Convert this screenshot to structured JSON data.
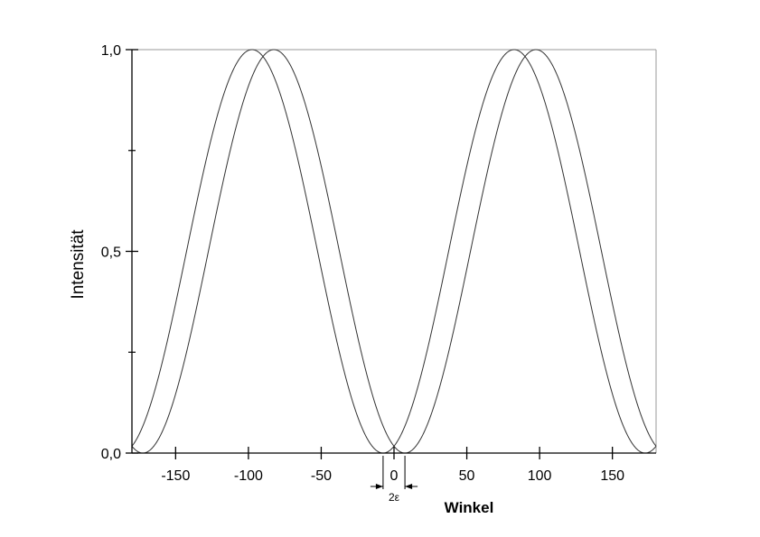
{
  "chart_data": {
    "type": "line",
    "title": "",
    "xlabel": "Winkel",
    "ylabel": "Intensität",
    "xlim": [
      -180,
      180
    ],
    "ylim": [
      0,
      1.0
    ],
    "x_ticks": [
      -150,
      -100,
      -50,
      0,
      50,
      100,
      150
    ],
    "x_tick_labels": [
      "-150",
      "-100",
      "-50",
      "0",
      "50",
      "100",
      "150"
    ],
    "y_ticks": [
      0,
      0.5,
      1.0
    ],
    "y_tick_labels": [
      "0,0",
      "0,5",
      "1,0"
    ],
    "y_minor_ticks": [
      0.25,
      0.75
    ],
    "grid": false,
    "legend": "none",
    "line_color": "#333333",
    "series": [
      {
        "function": "sin^2(x + epsilon)",
        "x": [
          -180,
          -165,
          -150,
          -135,
          -120,
          -105,
          -90,
          -75,
          -60,
          -45,
          -30,
          -15,
          0,
          15,
          30,
          45,
          60,
          75,
          90,
          105,
          120,
          135,
          150,
          165,
          180
        ],
        "values": [
          0.06,
          0.01,
          0.13,
          0.38,
          0.66,
          0.9,
          0.99,
          0.91,
          0.68,
          0.39,
          0.14,
          0.01,
          0.06,
          0.25,
          0.53,
          0.79,
          0.96,
          0.98,
          0.82,
          0.56,
          0.28,
          0.08,
          0.0,
          0.11,
          0.06
        ]
      },
      {
        "function": "sin^2(x - epsilon)",
        "x": [
          -180,
          -165,
          -150,
          -135,
          -120,
          -105,
          -90,
          -75,
          -60,
          -45,
          -30,
          -15,
          0,
          15,
          30,
          45,
          60,
          75,
          90,
          105,
          120,
          135,
          150,
          165,
          180
        ],
        "values": [
          0.06,
          0.25,
          0.53,
          0.79,
          0.96,
          0.98,
          0.82,
          0.56,
          0.28,
          0.08,
          0.0,
          0.11,
          0.06,
          0.01,
          0.13,
          0.38,
          0.66,
          0.9,
          0.99,
          0.91,
          0.68,
          0.39,
          0.14,
          0.01,
          0.06
        ]
      }
    ],
    "epsilon_deg": 7.5,
    "annotation": {
      "text": "2ε",
      "x_from": -7.5,
      "x_to": 7.5
    }
  }
}
